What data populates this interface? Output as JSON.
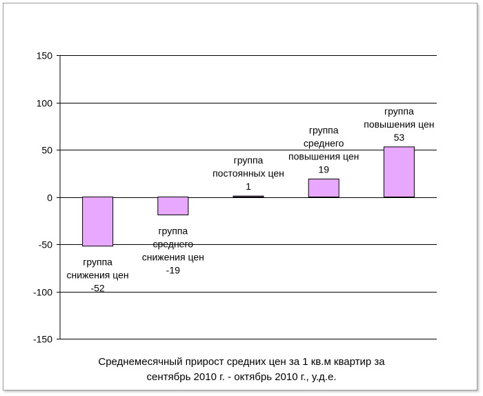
{
  "chart_data": {
    "type": "bar",
    "categories": [
      [
        "группа",
        "снижения цен"
      ],
      [
        "группа",
        "среднего",
        "снижения цен"
      ],
      [
        "группа",
        "постоянных цен"
      ],
      [
        "группа",
        "среднего",
        "повышения цен"
      ],
      [
        "группа",
        "повышения цен"
      ]
    ],
    "values": [
      -52,
      -19,
      1,
      19,
      53
    ],
    "ylim": [
      -150,
      150
    ],
    "yticks": [
      150,
      100,
      50,
      0,
      -50,
      -100,
      -150
    ],
    "grid": true,
    "legend": "none",
    "title": "",
    "xlabel": "",
    "ylabel": "",
    "caption": [
      "Среднемесячный прирост средних цен за 1 кв.м квартир за",
      "сентябрь 2010 г. - октябрь 2010 г., у.д.е."
    ],
    "colors": {
      "bar_fill": "#e8a8ff",
      "bar_stroke": "#000000",
      "grid": "#000000"
    }
  }
}
